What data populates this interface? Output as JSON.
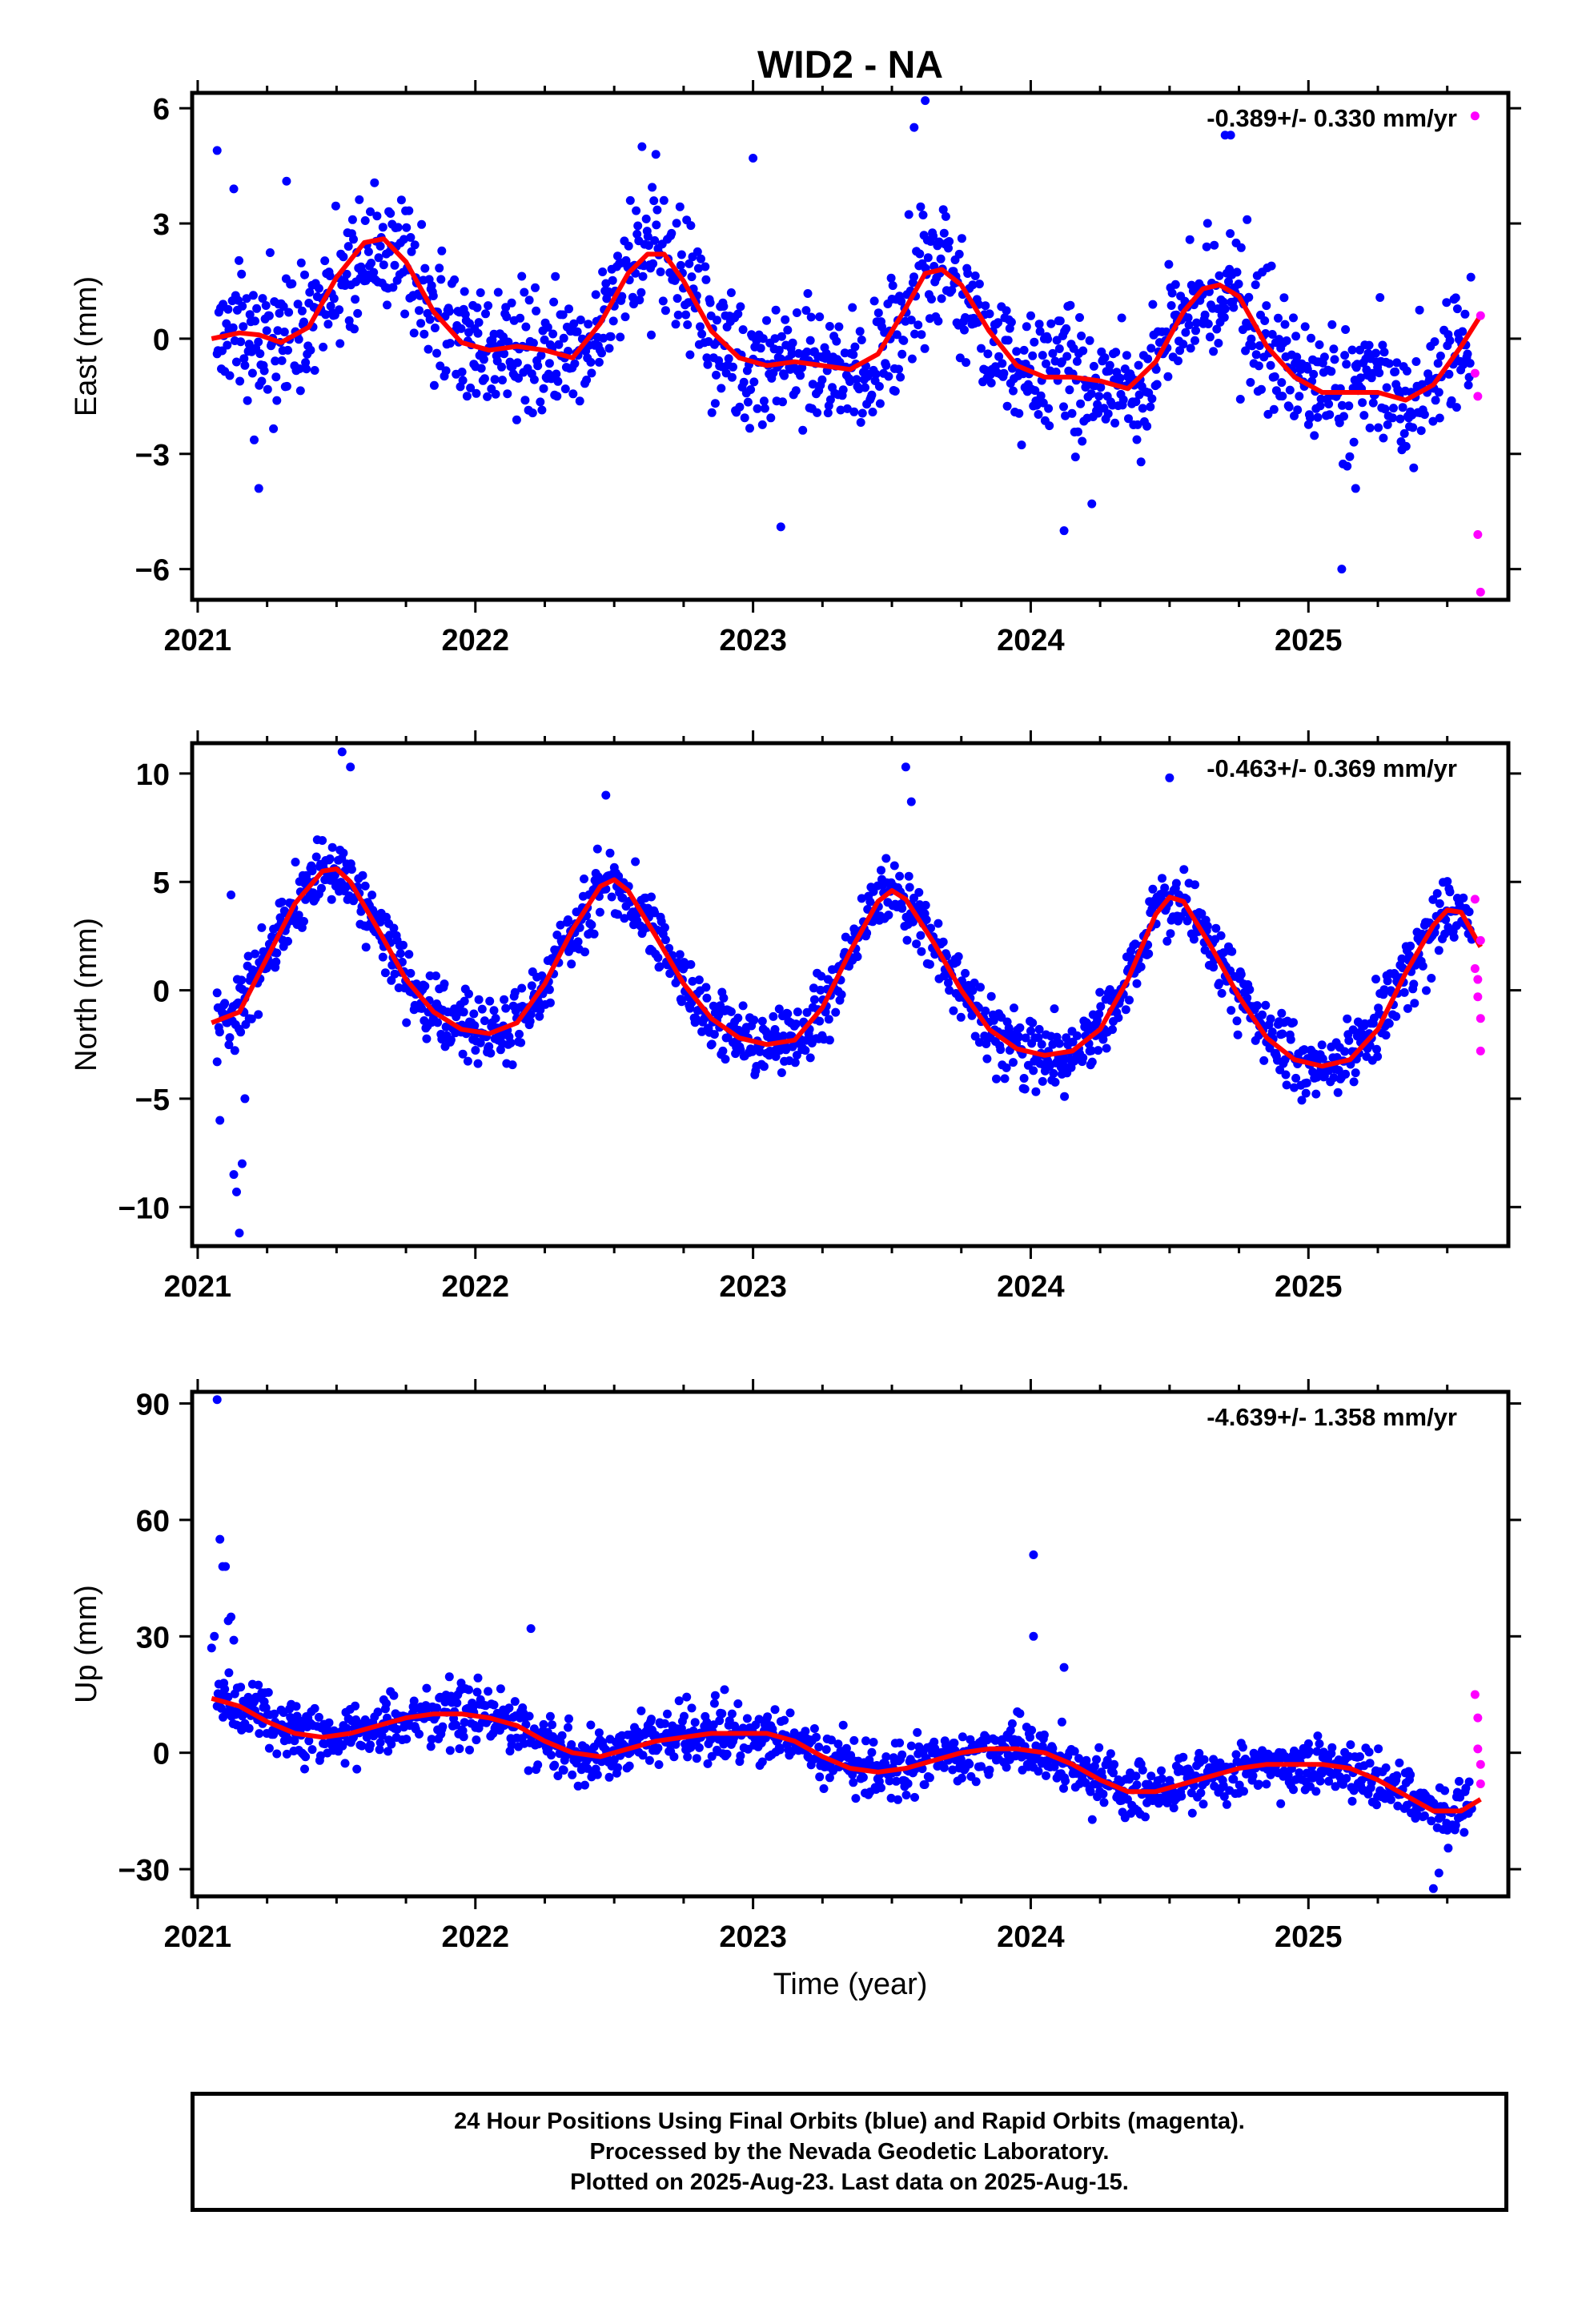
{
  "title": "WID2 - NA",
  "xlabel": "Time (year)",
  "colors": {
    "final": "#0000ff",
    "rapid": "#ff00ff",
    "model": "#ff0000",
    "frame": "#000000"
  },
  "caption": [
    "24 Hour Positions Using Final Orbits (blue) and Rapid Orbits (magenta).",
    "Processed by the Nevada Geodetic Laboratory.",
    "Plotted on 2025-Aug-23. Last data on 2025-Aug-15."
  ],
  "chart_data": [
    {
      "type": "scatter",
      "panel": "east",
      "ylabel": "East (mm)",
      "rate": "-0.389+/- 0.330 mm/yr",
      "xlim": [
        2020.98,
        2025.72
      ],
      "ylim": [
        -6.8,
        6.4
      ],
      "xticks": [
        2021,
        2022,
        2023,
        2024,
        2025
      ],
      "yticks": [
        -6,
        -3,
        0,
        3,
        6
      ],
      "model": {
        "x": [
          2021.05,
          2021.15,
          2021.22,
          2021.3,
          2021.4,
          2021.5,
          2021.6,
          2021.67,
          2021.75,
          2021.85,
          2021.95,
          2022.05,
          2022.15,
          2022.25,
          2022.35,
          2022.45,
          2022.55,
          2022.62,
          2022.68,
          2022.75,
          2022.85,
          2022.95,
          2023.05,
          2023.15,
          2023.25,
          2023.35,
          2023.45,
          2023.55,
          2023.62,
          2023.68,
          2023.75,
          2023.85,
          2023.95,
          2024.05,
          2024.15,
          2024.25,
          2024.35,
          2024.45,
          2024.55,
          2024.62,
          2024.68,
          2024.75,
          2024.85,
          2024.95,
          2025.05,
          2025.15,
          2025.25,
          2025.35,
          2025.45,
          2025.55,
          2025.62
        ],
        "y": [
          0.0,
          0.15,
          0.1,
          -0.1,
          0.3,
          1.6,
          2.5,
          2.6,
          2.0,
          0.7,
          -0.1,
          -0.3,
          -0.2,
          -0.3,
          -0.5,
          0.4,
          1.7,
          2.2,
          2.2,
          1.5,
          0.2,
          -0.5,
          -0.7,
          -0.6,
          -0.7,
          -0.8,
          -0.4,
          0.8,
          1.7,
          1.8,
          1.4,
          0.2,
          -0.7,
          -1.0,
          -1.0,
          -1.1,
          -1.3,
          -0.6,
          0.7,
          1.3,
          1.4,
          1.1,
          -0.2,
          -1.0,
          -1.4,
          -1.4,
          -1.4,
          -1.6,
          -1.2,
          -0.2,
          0.6
        ]
      },
      "rapid": {
        "x": [
          2025.6,
          2025.6,
          2025.61,
          2025.61,
          2025.62,
          2025.62
        ],
        "y": [
          5.8,
          -0.9,
          -1.5,
          -5.1,
          -6.6,
          0.6
        ]
      },
      "outliers": {
        "x": [
          2021.07,
          2021.13,
          2021.22,
          2021.32,
          2022.6,
          2022.65,
          2023.0,
          2023.1,
          2023.62,
          2023.58,
          2024.12,
          2024.22,
          2024.72,
          2024.7,
          2025.12,
          2025.17
        ],
        "y": [
          4.9,
          3.9,
          -3.9,
          4.1,
          5.0,
          4.8,
          4.7,
          -4.9,
          6.2,
          5.5,
          -5.0,
          -4.3,
          5.3,
          5.3,
          -6.0,
          -3.9
        ]
      },
      "scatter_sd": 1.2
    },
    {
      "type": "scatter",
      "panel": "north",
      "ylabel": "North (mm)",
      "rate": "-0.463+/- 0.369 mm/yr",
      "xlim": [
        2020.98,
        2025.72
      ],
      "ylim": [
        -11.8,
        11.4
      ],
      "xticks": [
        2021,
        2022,
        2023,
        2024,
        2025
      ],
      "yticks": [
        -10,
        -5,
        0,
        5,
        10
      ],
      "model": {
        "x": [
          2021.05,
          2021.15,
          2021.25,
          2021.35,
          2021.45,
          2021.5,
          2021.55,
          2021.65,
          2021.75,
          2021.85,
          2021.95,
          2022.05,
          2022.15,
          2022.25,
          2022.35,
          2022.45,
          2022.5,
          2022.55,
          2022.65,
          2022.75,
          2022.85,
          2022.95,
          2023.05,
          2023.15,
          2023.25,
          2023.35,
          2023.45,
          2023.5,
          2023.55,
          2023.65,
          2023.75,
          2023.85,
          2023.95,
          2024.05,
          2024.15,
          2024.25,
          2024.35,
          2024.45,
          2024.5,
          2024.55,
          2024.65,
          2024.75,
          2024.85,
          2024.95,
          2025.05,
          2025.15,
          2025.25,
          2025.35,
          2025.45,
          2025.5,
          2025.55,
          2025.62
        ],
        "y": [
          -1.5,
          -1.0,
          1.5,
          4.0,
          5.5,
          5.6,
          5.0,
          2.8,
          0.5,
          -1.0,
          -1.8,
          -2.0,
          -1.5,
          0.3,
          2.8,
          4.8,
          5.1,
          4.6,
          2.5,
          0.3,
          -1.3,
          -2.2,
          -2.5,
          -2.3,
          -0.8,
          1.8,
          4.1,
          4.6,
          4.2,
          2.2,
          0.0,
          -1.8,
          -2.7,
          -3.0,
          -2.8,
          -1.8,
          0.5,
          3.5,
          4.3,
          4.1,
          2.0,
          -0.3,
          -2.2,
          -3.2,
          -3.5,
          -3.2,
          -1.8,
          0.8,
          3.0,
          3.7,
          3.6,
          2.0
        ]
      },
      "rapid": {
        "x": [
          2025.6,
          2025.6,
          2025.61,
          2025.61,
          2025.62,
          2025.62,
          2025.62
        ],
        "y": [
          4.2,
          1.0,
          0.5,
          -0.3,
          -1.3,
          -2.8,
          2.3
        ]
      },
      "outliers": {
        "x": [
          2021.08,
          2021.12,
          2021.13,
          2021.14,
          2021.15,
          2021.16,
          2021.17,
          2021.07,
          2021.52,
          2021.55,
          2022.47,
          2023.55,
          2023.57,
          2024.5
        ],
        "y": [
          -6.0,
          4.4,
          -8.5,
          -9.3,
          -11.2,
          -8.0,
          -5.0,
          -3.3,
          11.0,
          10.3,
          9.0,
          10.3,
          8.7,
          9.8
        ]
      },
      "scatter_sd": 1.1
    },
    {
      "type": "scatter",
      "panel": "up",
      "ylabel": "Up (mm)",
      "rate": "-4.639+/- 1.358 mm/yr",
      "xlim": [
        2020.98,
        2025.72
      ],
      "ylim": [
        -37,
        93
      ],
      "xticks": [
        2021,
        2022,
        2023,
        2024,
        2025
      ],
      "yticks": [
        -30,
        0,
        30,
        60,
        90
      ],
      "model": {
        "x": [
          2021.05,
          2021.15,
          2021.25,
          2021.35,
          2021.45,
          2021.55,
          2021.65,
          2021.75,
          2021.85,
          2021.95,
          2022.05,
          2022.15,
          2022.25,
          2022.35,
          2022.45,
          2022.55,
          2022.65,
          2022.75,
          2022.85,
          2022.95,
          2023.05,
          2023.15,
          2023.25,
          2023.35,
          2023.45,
          2023.55,
          2023.65,
          2023.75,
          2023.85,
          2023.95,
          2024.05,
          2024.15,
          2024.25,
          2024.35,
          2024.45,
          2024.55,
          2024.65,
          2024.75,
          2024.85,
          2024.95,
          2025.05,
          2025.15,
          2025.25,
          2025.35,
          2025.45,
          2025.55,
          2025.62
        ],
        "y": [
          14,
          12,
          8,
          5,
          4,
          5,
          7,
          9,
          10,
          10,
          9,
          7,
          3,
          0,
          -1,
          1,
          3,
          4,
          5,
          5,
          5,
          3,
          -1,
          -4,
          -5,
          -4,
          -2,
          0,
          1,
          1,
          0,
          -3,
          -7,
          -10,
          -10,
          -8,
          -6,
          -4,
          -3,
          -3,
          -3,
          -4,
          -7,
          -11,
          -15,
          -15,
          -12
        ]
      },
      "rapid": {
        "x": [
          2025.6,
          2025.61,
          2025.61,
          2025.62,
          2025.62
        ],
        "y": [
          15,
          9,
          1,
          -3,
          -8
        ]
      },
      "outliers": {
        "x": [
          2021.06,
          2021.08,
          2021.09,
          2021.1,
          2021.11,
          2021.12,
          2021.13,
          2021.05,
          2021.07,
          2022.2,
          2024.01,
          2024.01,
          2024.12,
          2025.45,
          2025.47
        ],
        "y": [
          30,
          55,
          48,
          48,
          34,
          35,
          29,
          27,
          91,
          32,
          51,
          30,
          22,
          -35,
          -31
        ]
      },
      "scatter_sd": 5
    }
  ]
}
